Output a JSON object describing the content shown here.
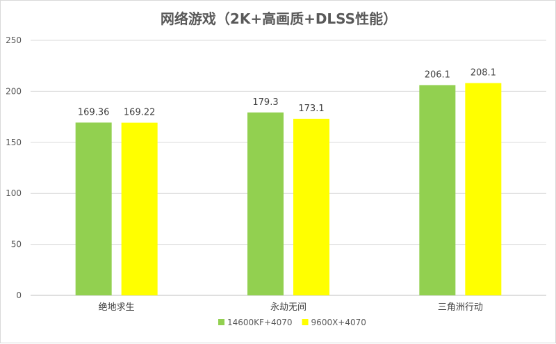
{
  "chart_data": {
    "type": "bar",
    "title": "网络游戏（2K+高画质+DLSS性能）",
    "categories": [
      "绝地求生",
      "永劫无间",
      "三角洲行动"
    ],
    "series": [
      {
        "name": "14600KF+4070",
        "color": "#92d050",
        "values": [
          169.36,
          179.3,
          206.1
        ],
        "labels": [
          "169.36",
          "179.3",
          "206.1"
        ]
      },
      {
        "name": "9600X+4070",
        "color": "#ffff00",
        "values": [
          169.22,
          173.1,
          208.1
        ],
        "labels": [
          "169.22",
          "173.1",
          "208.1"
        ]
      }
    ],
    "ylim": [
      0,
      250
    ],
    "yticks": [
      0,
      50,
      100,
      150,
      200,
      250
    ],
    "grid": true,
    "legend": "bottom"
  }
}
